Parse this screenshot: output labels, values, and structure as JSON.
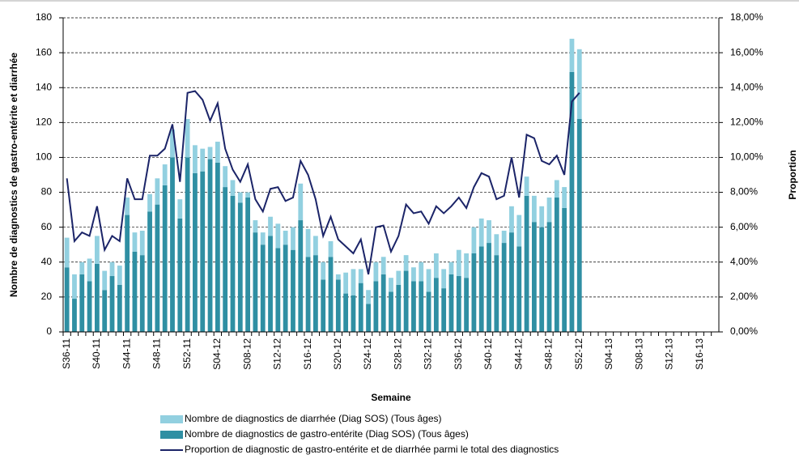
{
  "chart_data": {
    "type": "bar-line",
    "x_label": "Semaine",
    "y_label": "Nombre de diagnostics de gastro-entérite et diarrhée",
    "y2_label": "Proportion",
    "categories": [
      "S36-11",
      null,
      null,
      null,
      "S40-11",
      null,
      null,
      null,
      "S44-11",
      null,
      null,
      null,
      "S48-11",
      null,
      null,
      null,
      "S52-11",
      null,
      null,
      null,
      "S04-12",
      null,
      null,
      null,
      "S08-12",
      null,
      null,
      null,
      "S12-12",
      null,
      null,
      null,
      "S16-12",
      null,
      null,
      null,
      "S20-12",
      null,
      null,
      null,
      "S24-12",
      null,
      null,
      null,
      "S28-12",
      null,
      null,
      null,
      "S32-12",
      null,
      null,
      null,
      "S36-12",
      null,
      null,
      null,
      "S40-12",
      null,
      null,
      null,
      "S44-12",
      null,
      null,
      null,
      "S48-12",
      null,
      null,
      null,
      "S52-12",
      null,
      null,
      null,
      "S04-13",
      null,
      null,
      null,
      "S08-13",
      null,
      null,
      null,
      "S12-13",
      null,
      null,
      null,
      "S16-13",
      null,
      null
    ],
    "series": [
      {
        "name": "Nombre de diagnostics de gastro-entérite (Diag SOS) (Tous âges)",
        "color": "#2f8fa3",
        "kind": "bar",
        "values": [
          37,
          19,
          33,
          29,
          39,
          24,
          32,
          27,
          67,
          46,
          44,
          69,
          73,
          84,
          100,
          65,
          100,
          91,
          92,
          99,
          97,
          83,
          78,
          74,
          77,
          57,
          50,
          55,
          48,
          50,
          47,
          64,
          43,
          44,
          30,
          43,
          30,
          22,
          21,
          28,
          16,
          29,
          33,
          23,
          27,
          35,
          29,
          29,
          23,
          31,
          25,
          33,
          32,
          31,
          45,
          49,
          51,
          44,
          51,
          57,
          49,
          78,
          63,
          60,
          63,
          77,
          71,
          149,
          122,
          null,
          null,
          null,
          null,
          null,
          null,
          null,
          null,
          null,
          null,
          null,
          null,
          null,
          null,
          null,
          null,
          null,
          null
        ]
      },
      {
        "name": "Nombre de diagnostics de diarrhée (Diag SOS) (Tous âges)",
        "color": "#92d0e0",
        "kind": "bar",
        "values": [
          17,
          14,
          7,
          13,
          16,
          11,
          8,
          11,
          10,
          11,
          14,
          10,
          15,
          12,
          16,
          11,
          22,
          16,
          13,
          7,
          12,
          12,
          9,
          6,
          3,
          7,
          7,
          11,
          14,
          8,
          13,
          21,
          16,
          11,
          10,
          9,
          3,
          12,
          15,
          8,
          8,
          11,
          10,
          8,
          8,
          9,
          8,
          11,
          13,
          14,
          11,
          7,
          15,
          14,
          15,
          16,
          13,
          12,
          7,
          15,
          18,
          11,
          15,
          12,
          14,
          10,
          12,
          19,
          40,
          null,
          null,
          null,
          null,
          null,
          null,
          null,
          null,
          null,
          null,
          null,
          null,
          null,
          null,
          null,
          null,
          null,
          null
        ]
      },
      {
        "name": "Proportion de diagnostic de gastro-entérite et de diarrhée parmi le total des diagnostics",
        "color": "#1b2468",
        "kind": "line",
        "axis": "y2",
        "values": [
          8.8,
          5.2,
          5.7,
          5.5,
          7.2,
          4.7,
          5.5,
          5.2,
          8.8,
          7.6,
          7.6,
          10.1,
          10.1,
          10.5,
          11.9,
          8.6,
          13.7,
          13.8,
          13.3,
          12.1,
          13.1,
          10.5,
          9.3,
          8.6,
          9.6,
          7.6,
          6.9,
          8.2,
          8.3,
          7.5,
          7.7,
          9.8,
          9.0,
          7.6,
          5.5,
          6.6,
          5.3,
          4.9,
          4.5,
          5.3,
          3.3,
          6.0,
          6.1,
          4.6,
          5.5,
          7.3,
          6.8,
          6.9,
          6.2,
          7.2,
          6.8,
          7.2,
          7.7,
          7.1,
          8.3,
          9.1,
          8.9,
          7.6,
          7.8,
          10.0,
          7.7,
          11.3,
          11.1,
          9.8,
          9.6,
          10.1,
          9.0,
          13.2,
          13.7,
          null,
          null,
          null,
          null,
          null,
          null,
          null,
          null,
          null,
          null,
          null,
          null,
          null,
          null,
          null,
          null,
          null,
          null
        ]
      }
    ],
    "ylim": [
      0,
      180
    ],
    "yticks": [
      0,
      20,
      40,
      60,
      80,
      100,
      120,
      140,
      160,
      180
    ],
    "y2lim": [
      0,
      18
    ],
    "y2ticks": [
      {
        "value": 0,
        "label": "0,00%"
      },
      {
        "value": 2,
        "label": "2,00%"
      },
      {
        "value": 4,
        "label": "4,00%"
      },
      {
        "value": 6,
        "label": "6,00%"
      },
      {
        "value": 8,
        "label": "8,00%"
      },
      {
        "value": 10,
        "label": "10,00%"
      },
      {
        "value": 12,
        "label": "12,00%"
      },
      {
        "value": 14,
        "label": "14,00%"
      },
      {
        "value": 16,
        "label": "16,00%"
      },
      {
        "value": 18,
        "label": "18,00%"
      }
    ],
    "grid": true,
    "legend": "bottom"
  }
}
